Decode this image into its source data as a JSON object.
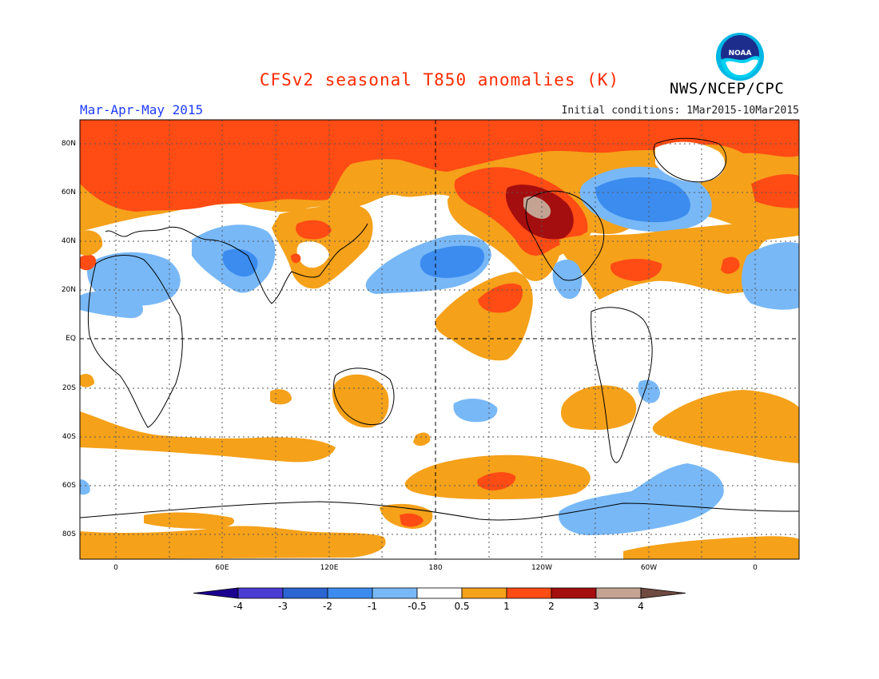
{
  "title": "CFSv2 seasonal T850 anomalies (K)",
  "agency": "NWS/NCEP/CPC",
  "logo_text": "NOAA",
  "season": "Mar-Apr-May 2015",
  "initial_conditions": "Initial conditions: 1Mar2015-10Mar2015",
  "lat_labels": [
    "80N",
    "60N",
    "40N",
    "20N",
    "EQ",
    "20S",
    "40S",
    "60S",
    "80S"
  ],
  "lon_labels": [
    "0",
    "60E",
    "120E",
    "180",
    "120W",
    "60W",
    "0"
  ],
  "colorbar": {
    "ticks": [
      "-4",
      "-3",
      "-2",
      "-1",
      "-0.5",
      "0.5",
      "1",
      "2",
      "3",
      "4"
    ],
    "colors": [
      "#1a0090",
      "#4a3cd2",
      "#2c64d2",
      "#3c8cef",
      "#78b8f7",
      "#ffffff",
      "#f5a11a",
      "#ff4b14",
      "#a50e0e",
      "#c4a393",
      "#6e4a40"
    ]
  }
}
